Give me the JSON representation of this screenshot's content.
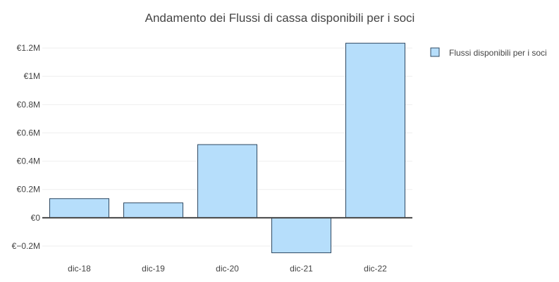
{
  "chart_data": {
    "type": "bar",
    "title": "Andamento dei Flussi di cassa disponibili per i soci",
    "categories": [
      "dic-18",
      "dic-19",
      "dic-20",
      "dic-21",
      "dic-22"
    ],
    "series": [
      {
        "name": "Flussi disponibili per i soci",
        "values": [
          135000,
          105000,
          517000,
          -248000,
          1234000
        ],
        "color": "#b6defb",
        "border_color": "#2d4861"
      }
    ],
    "ylim": [
      -0.28,
      1.3
    ],
    "yticks": [
      -0.2,
      0,
      0.2,
      0.4,
      0.6,
      0.8,
      1.0,
      1.2
    ],
    "ytick_labels": [
      "€−0.2M",
      "€0",
      "€0.2M",
      "€0.4M",
      "€0.6M",
      "€0.8M",
      "€1M",
      "€1.2M"
    ],
    "y_unit_divisor": 1000000,
    "grid": true,
    "legend_position": "top-right"
  }
}
